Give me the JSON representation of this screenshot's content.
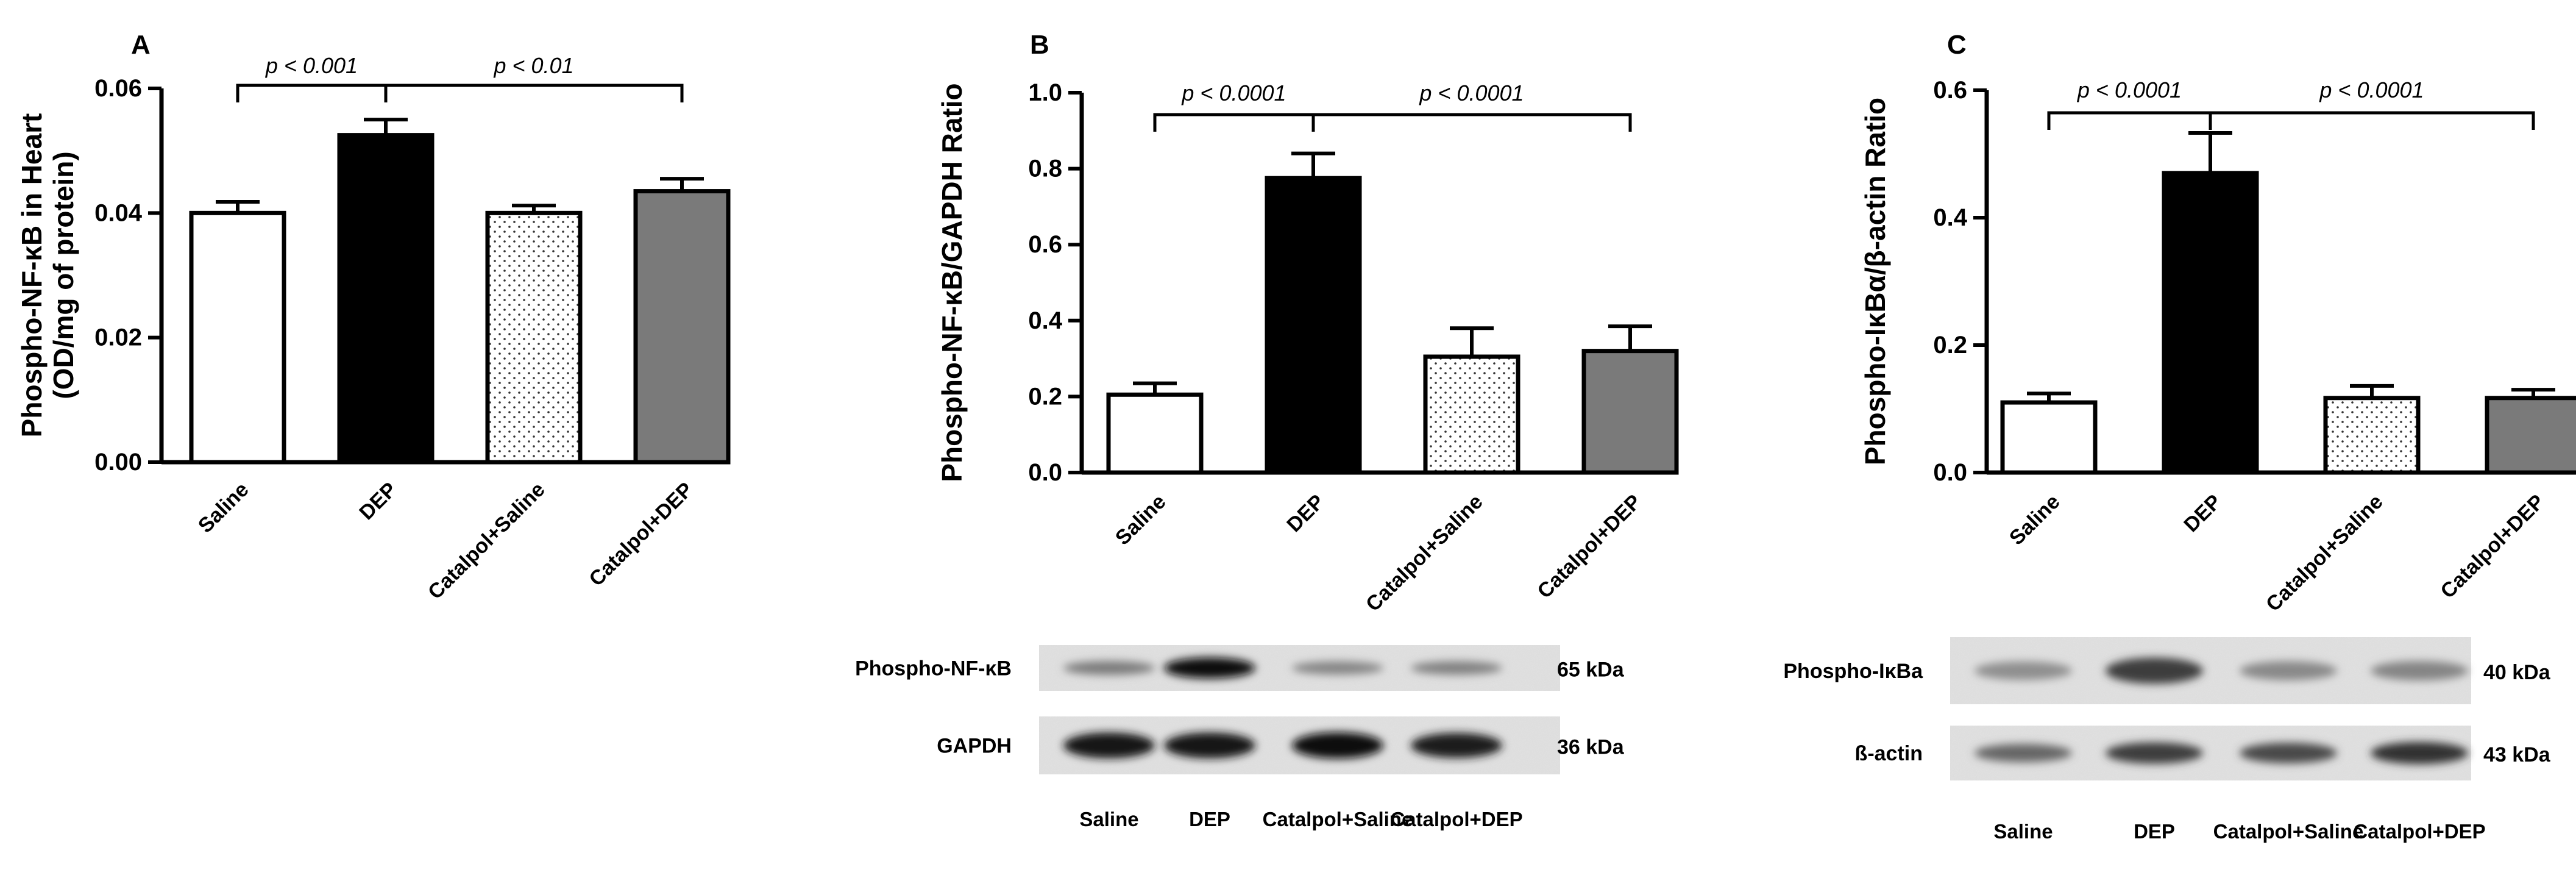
{
  "chart_data": [
    {
      "type": "bar",
      "panel_label": "A",
      "categories": [
        "Saline",
        "DEP",
        "Catalpol+Saline",
        "Catalpol+DEP"
      ],
      "values": [
        0.04,
        0.0525,
        0.04,
        0.0435
      ],
      "errors": [
        0.0018,
        0.0025,
        0.0012,
        0.002
      ],
      "fills": [
        "white",
        "black",
        "dotted",
        "gray"
      ],
      "ylabel": [
        "Phospho-NF-κB in Heart",
        "(OD/mg of protein)"
      ],
      "ylim": [
        0,
        0.06
      ],
      "yticks": [
        0,
        0.02,
        0.04,
        0.06
      ],
      "ytick_labels": [
        "0.00",
        "0.02",
        "0.04",
        "0.06"
      ],
      "brackets": [
        {
          "from": 0,
          "to": 1,
          "label": "p < 0.001"
        },
        {
          "from": 1,
          "to": 3,
          "label": "p < 0.01"
        }
      ]
    },
    {
      "type": "bar",
      "panel_label": "B",
      "categories": [
        "Saline",
        "DEP",
        "Catalpol+Saline",
        "Catalpol+DEP"
      ],
      "values": [
        0.205,
        0.775,
        0.305,
        0.32
      ],
      "errors": [
        0.03,
        0.065,
        0.075,
        0.065
      ],
      "fills": [
        "white",
        "black",
        "dotted",
        "gray"
      ],
      "ylabel": [
        "Phospho-NF-κB/GAPDH Ratio"
      ],
      "ylim": [
        0,
        1.0
      ],
      "yticks": [
        0,
        0.2,
        0.4,
        0.6,
        0.8,
        1.0
      ],
      "ytick_labels": [
        "0.0",
        "0.2",
        "0.4",
        "0.6",
        "0.8",
        "1.0"
      ],
      "brackets": [
        {
          "from": 0,
          "to": 1,
          "label": "p < 0.0001"
        },
        {
          "from": 1,
          "to": 3,
          "label": "p < 0.0001"
        }
      ],
      "blot": {
        "rows": [
          {
            "label": "Phospho-NF-κB",
            "kda": "65 kDa",
            "intensity": [
              0.45,
              1.0,
              0.4,
              0.42
            ]
          },
          {
            "label": "GAPDH",
            "kda": "36 kDa",
            "intensity": [
              0.95,
              0.95,
              0.98,
              0.9
            ]
          }
        ],
        "lanes": [
          "Saline",
          "DEP",
          "Catalpol+Saline",
          "Catalpol+DEP"
        ]
      }
    },
    {
      "type": "bar",
      "panel_label": "C",
      "categories": [
        "Saline",
        "DEP",
        "Catalpol+Saline",
        "Catalpol+DEP"
      ],
      "values": [
        0.11,
        0.47,
        0.117,
        0.117
      ],
      "errors": [
        0.014,
        0.063,
        0.019,
        0.013
      ],
      "fills": [
        "white",
        "black",
        "dotted",
        "gray"
      ],
      "ylabel": [
        "Phospho-IκBα/β-actin Ratio"
      ],
      "ylim": [
        0,
        0.6
      ],
      "yticks": [
        0,
        0.2,
        0.4,
        0.6
      ],
      "ytick_labels": [
        "0.0",
        "0.2",
        "0.4",
        "0.6"
      ],
      "brackets": [
        {
          "from": 0,
          "to": 1,
          "label": "p < 0.0001"
        },
        {
          "from": 1,
          "to": 3,
          "label": "p < 0.0001"
        }
      ],
      "blot": {
        "rows": [
          {
            "label": "Phospho-IκBa",
            "kda": "40 kDa",
            "intensity": [
              0.35,
              0.75,
              0.38,
              0.4
            ]
          },
          {
            "label": "ß-actin",
            "kda": "43 kDa",
            "intensity": [
              0.55,
              0.75,
              0.7,
              0.8
            ]
          }
        ],
        "lanes": [
          "Saline",
          "DEP",
          "Catalpol+Saline",
          "Catalpol+DEP"
        ]
      }
    }
  ]
}
